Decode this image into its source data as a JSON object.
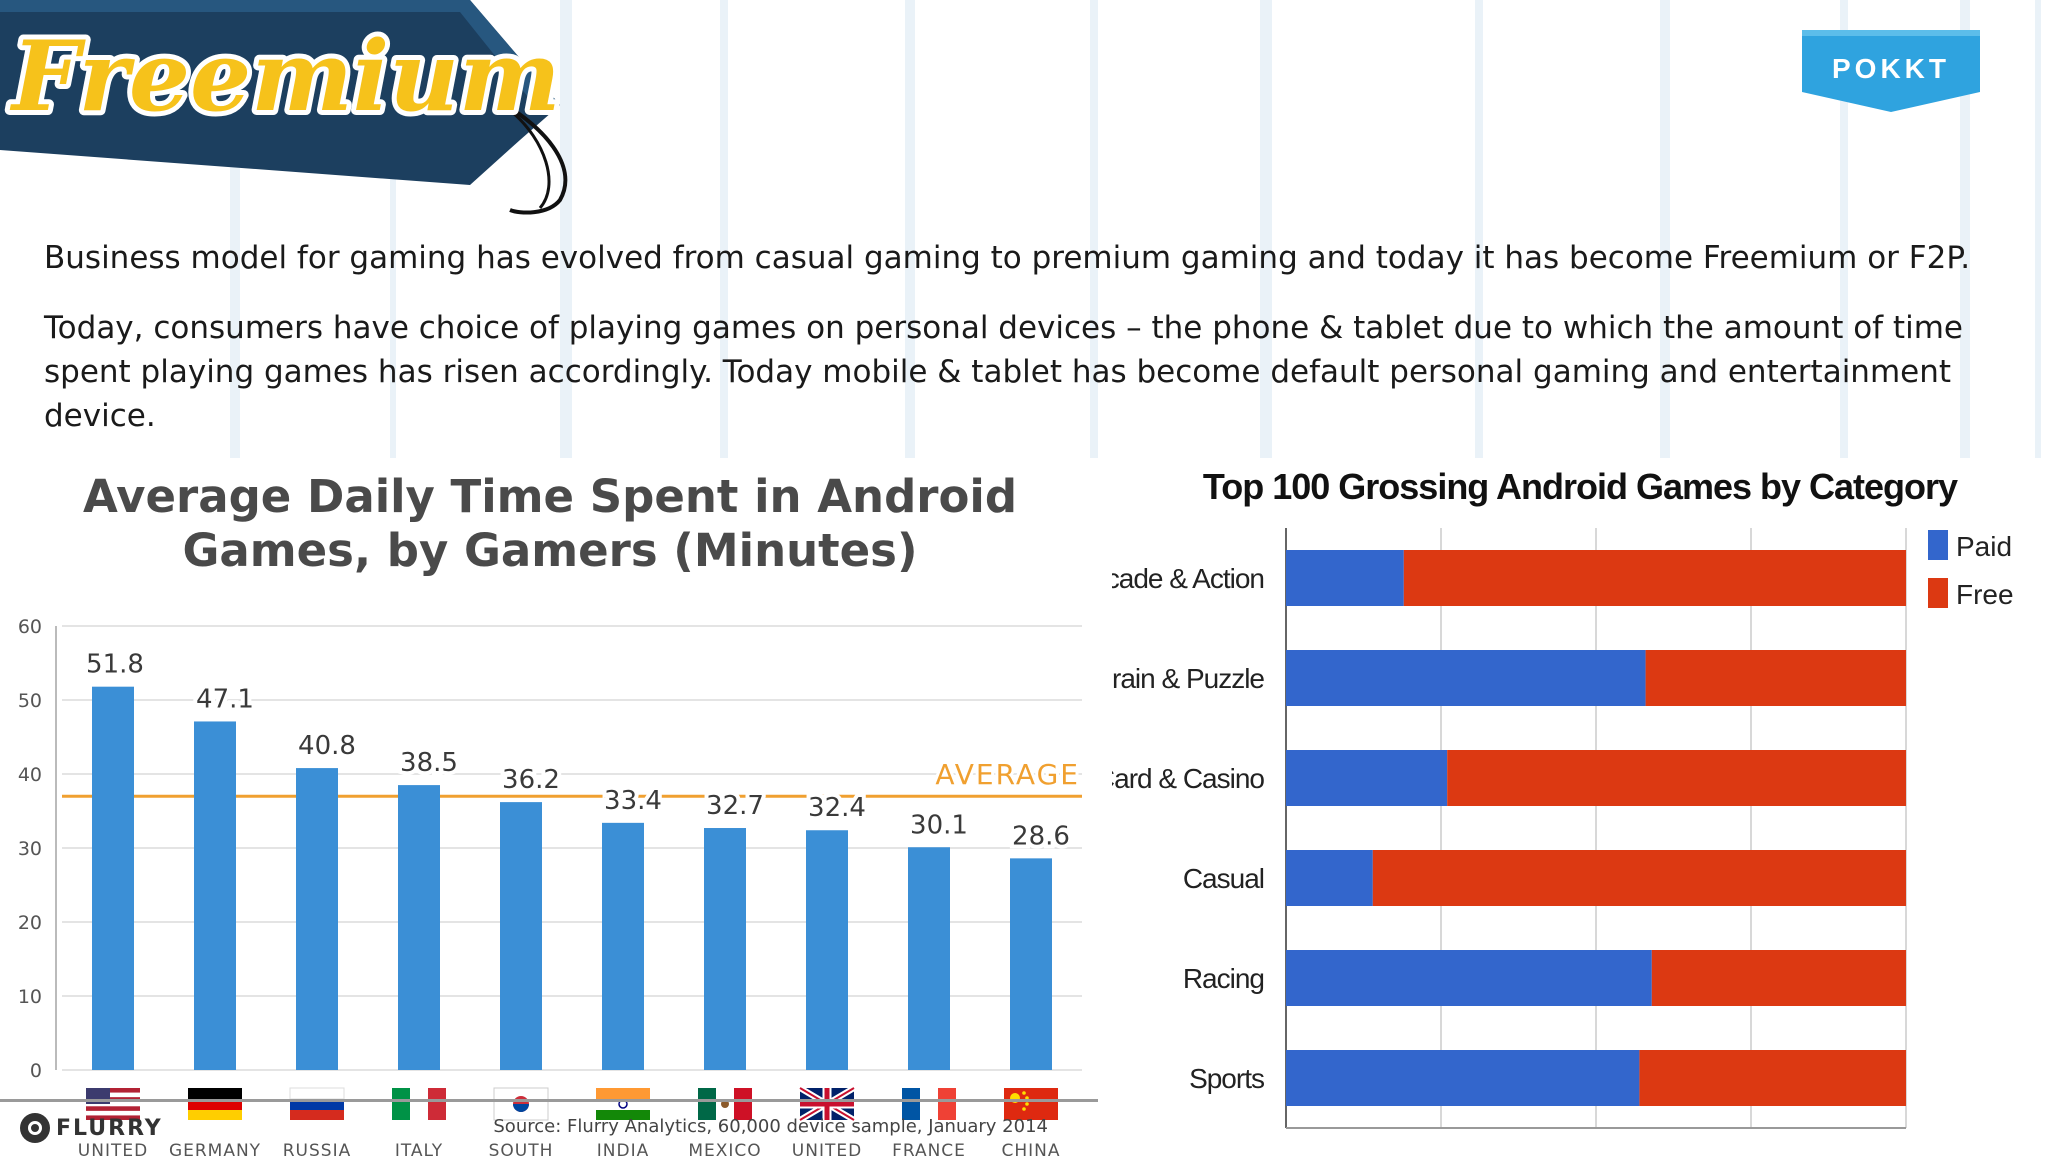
{
  "slide": {
    "title": "Freemium",
    "para1": "Business model for gaming has evolved from casual gaming to premium gaming and today it has become Freemium or F2P.",
    "para2": "Today, consumers have choice of playing games on personal devices – the phone & tablet due to which the amount of time spent playing games has risen accordingly. Today mobile & tablet has become default personal gaming and entertainment device.",
    "brand_logo": "POKKT",
    "colors": {
      "banner": "#1c3f5f",
      "title_yellow": "#f6c21b",
      "logo_blue": "#2fa3df"
    }
  },
  "footer": {
    "logo_text": "FLURRY",
    "source": "Source: Flurry Analytics, 60,000 device sample, January 2014"
  },
  "chart_data": [
    {
      "type": "bar",
      "title": "Average Daily Time Spent in Android Games, by Gamers (Minutes)",
      "categories": [
        "UNITED STATES",
        "GERMANY",
        "RUSSIA",
        "ITALY",
        "SOUTH KOREA",
        "INDIA",
        "MEXICO",
        "UNITED KINGDOM",
        "FRANCE",
        "CHINA"
      ],
      "values": [
        51.8,
        47.1,
        40.8,
        38.5,
        36.2,
        33.4,
        32.7,
        32.4,
        30.1,
        28.6
      ],
      "ylim": [
        0,
        60
      ],
      "yticks": [
        0,
        10,
        20,
        30,
        40,
        50,
        60
      ],
      "reference_line": {
        "label": "AVERAGE",
        "value": 37
      },
      "grid": true,
      "colors": {
        "bar": "#3b8fd6",
        "average": "#f0a030"
      }
    },
    {
      "type": "bar",
      "orientation": "horizontal",
      "stacked": true,
      "title": "Top 100 Grossing Android Games by Category",
      "categories": [
        "Arcade & Action",
        "Brain & Puzzle",
        "Card & Casino",
        "Casual",
        "Racing",
        "Sports"
      ],
      "series": [
        {
          "name": "Paid",
          "values": [
            19,
            58,
            26,
            14,
            59,
            57
          ],
          "color": "#3366cc"
        },
        {
          "name": "Free",
          "values": [
            81,
            42,
            74,
            86,
            41,
            43
          ],
          "color": "#dc3912"
        }
      ],
      "xlim": [
        0,
        100
      ],
      "xticks": [
        0,
        25,
        50,
        75,
        100
      ],
      "grid": true,
      "legend": "top-right"
    }
  ]
}
